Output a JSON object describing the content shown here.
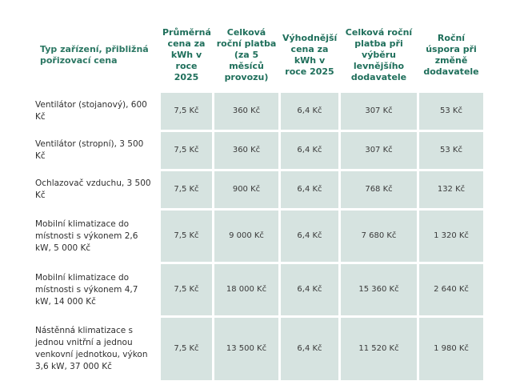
{
  "table": {
    "headers": [
      "Typ zařízení, přibližná pořizovací cena",
      "Průměrná cena za kWh v roce 2025",
      "Celková roční platba (za 5 měsíců provozu)",
      "Výhodnější cena za kWh v roce 2025",
      "Celková roční platba při výběru levnějšího dodavatele",
      "Roční úspora při změně dodavatele"
    ],
    "rows": [
      [
        "Ventilátor (stojanový), 600 Kč",
        "7,5 Kč",
        "360 Kč",
        "6,4 Kč",
        "307 Kč",
        "53 Kč"
      ],
      [
        "Ventilátor (stropní), 3 500 Kč",
        "7,5 Kč",
        "360 Kč",
        "6,4 Kč",
        "307 Kč",
        "53 Kč"
      ],
      [
        "Ochlazovač vzduchu, 3 500 Kč",
        "7,5 Kč",
        "900 Kč",
        "6,4 Kč",
        "768 Kč",
        "132 Kč"
      ],
      [
        "Mobilní klimatizace do místnosti s výkonem 2,6 kW, 5 000 Kč",
        "7,5 Kč",
        "9 000 Kč",
        "6,4 Kč",
        "7 680 Kč",
        "1 320 Kč"
      ],
      [
        "Mobilní klimatizace do místnosti s výkonem 4,7 kW, 14 000 Kč",
        "7,5 Kč",
        "18 000 Kč",
        "6,4 Kč",
        "15 360 Kč",
        "2 640 Kč"
      ],
      [
        "Nástěnná klimatizace s jednou vnitřní a jednou venkovní jednotkou, výkon 3,6 kW, 37 000 Kč",
        "7,5 Kč",
        "13 500 Kč",
        "6,4 Kč",
        "11 520 Kč",
        "1 980 Kč"
      ]
    ]
  }
}
